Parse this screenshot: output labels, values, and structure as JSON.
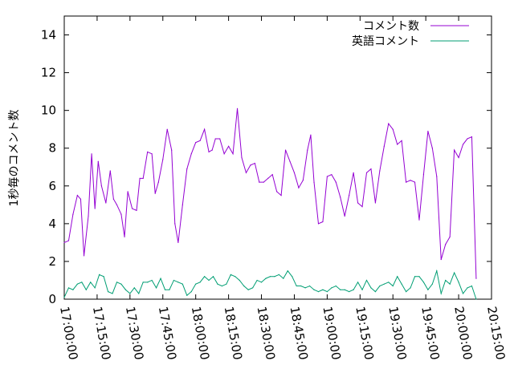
{
  "chart_data": {
    "type": "line",
    "title": "",
    "xlabel": "",
    "ylabel": "1秒毎のコメント数",
    "xlim": [
      "17:00:00",
      "20:15:00"
    ],
    "ylim": [
      0,
      15
    ],
    "grid": false,
    "legend_position": "top-right",
    "x_ticks": [
      "17:00:00",
      "17:15:00",
      "17:30:00",
      "17:45:00",
      "18:00:00",
      "18:15:00",
      "18:30:00",
      "18:45:00",
      "19:00:00",
      "19:15:00",
      "19:30:00",
      "19:45:00",
      "20:00:00",
      "20:15:00"
    ],
    "y_ticks": [
      0,
      2,
      4,
      6,
      8,
      10,
      12,
      14
    ],
    "series": [
      {
        "name": "コメント数",
        "color": "#9400d3",
        "points": [
          [
            "17:00:00",
            3.0
          ],
          [
            "17:02:00",
            3.1
          ],
          [
            "17:04:00",
            4.5
          ],
          [
            "17:06:00",
            5.5
          ],
          [
            "17:07:30",
            5.3
          ],
          [
            "17:09:00",
            2.3
          ],
          [
            "17:11:00",
            4.4
          ],
          [
            "17:12:30",
            7.7
          ],
          [
            "17:14:00",
            4.8
          ],
          [
            "17:15:30",
            7.3
          ],
          [
            "17:17:00",
            6.0
          ],
          [
            "17:19:00",
            5.1
          ],
          [
            "17:21:00",
            6.8
          ],
          [
            "17:22:30",
            5.3
          ],
          [
            "17:24:00",
            5.0
          ],
          [
            "17:26:00",
            4.5
          ],
          [
            "17:27:30",
            3.3
          ],
          [
            "17:29:00",
            5.7
          ],
          [
            "17:31:00",
            4.8
          ],
          [
            "17:33:00",
            4.7
          ],
          [
            "17:34:30",
            6.4
          ],
          [
            "17:36:00",
            6.4
          ],
          [
            "17:38:00",
            7.8
          ],
          [
            "17:40:00",
            7.7
          ],
          [
            "17:41:30",
            5.6
          ],
          [
            "17:43:00",
            6.2
          ],
          [
            "17:45:00",
            7.4
          ],
          [
            "17:47:00",
            9.0
          ],
          [
            "17:49:00",
            7.9
          ],
          [
            "17:50:30",
            4.0
          ],
          [
            "17:52:00",
            3.0
          ],
          [
            "17:54:00",
            5.0
          ],
          [
            "17:56:00",
            6.9
          ],
          [
            "17:58:00",
            7.7
          ],
          [
            "18:00:00",
            8.3
          ],
          [
            "18:02:00",
            8.4
          ],
          [
            "18:04:00",
            9.0
          ],
          [
            "18:06:00",
            7.8
          ],
          [
            "18:07:30",
            7.9
          ],
          [
            "18:09:00",
            8.5
          ],
          [
            "18:11:00",
            8.5
          ],
          [
            "18:13:00",
            7.7
          ],
          [
            "18:15:00",
            8.1
          ],
          [
            "18:17:00",
            7.7
          ],
          [
            "18:19:00",
            10.1
          ],
          [
            "18:21:00",
            7.5
          ],
          [
            "18:23:00",
            6.7
          ],
          [
            "18:25:00",
            7.1
          ],
          [
            "18:27:00",
            7.2
          ],
          [
            "18:29:00",
            6.2
          ],
          [
            "18:31:00",
            6.2
          ],
          [
            "18:33:00",
            6.4
          ],
          [
            "18:35:00",
            6.6
          ],
          [
            "18:37:00",
            5.7
          ],
          [
            "18:39:00",
            5.5
          ],
          [
            "18:41:00",
            7.9
          ],
          [
            "18:43:00",
            7.3
          ],
          [
            "18:45:00",
            6.7
          ],
          [
            "18:47:00",
            5.9
          ],
          [
            "18:49:00",
            6.3
          ],
          [
            "18:51:00",
            7.9
          ],
          [
            "18:52:30",
            8.7
          ],
          [
            "18:54:00",
            6.2
          ],
          [
            "18:56:00",
            4.0
          ],
          [
            "18:58:00",
            4.1
          ],
          [
            "19:00:00",
            6.5
          ],
          [
            "19:02:00",
            6.6
          ],
          [
            "19:04:00",
            6.2
          ],
          [
            "19:06:00",
            5.4
          ],
          [
            "19:08:00",
            4.4
          ],
          [
            "19:10:00",
            5.5
          ],
          [
            "19:12:00",
            6.7
          ],
          [
            "19:14:00",
            5.1
          ],
          [
            "19:16:00",
            4.9
          ],
          [
            "19:18:00",
            6.7
          ],
          [
            "19:20:00",
            6.9
          ],
          [
            "19:22:00",
            5.1
          ],
          [
            "19:24:00",
            6.8
          ],
          [
            "19:26:00",
            8.1
          ],
          [
            "19:28:00",
            9.3
          ],
          [
            "19:30:00",
            9.0
          ],
          [
            "19:32:00",
            8.2
          ],
          [
            "19:34:00",
            8.4
          ],
          [
            "19:36:00",
            6.2
          ],
          [
            "19:38:00",
            6.3
          ],
          [
            "19:40:00",
            6.2
          ],
          [
            "19:42:00",
            4.2
          ],
          [
            "19:44:00",
            6.6
          ],
          [
            "19:46:00",
            8.9
          ],
          [
            "19:48:00",
            8.0
          ],
          [
            "19:50:00",
            6.5
          ],
          [
            "19:52:00",
            2.1
          ],
          [
            "19:54:00",
            2.9
          ],
          [
            "19:56:00",
            3.3
          ],
          [
            "19:58:00",
            7.9
          ],
          [
            "20:00:00",
            7.5
          ],
          [
            "20:02:00",
            8.2
          ],
          [
            "20:04:00",
            8.5
          ],
          [
            "20:06:00",
            8.6
          ],
          [
            "20:08:00",
            1.1
          ]
        ]
      },
      {
        "name": "英語コメント",
        "color": "#009e73",
        "points": [
          [
            "17:00:00",
            0.1
          ],
          [
            "17:02:00",
            0.6
          ],
          [
            "17:04:00",
            0.5
          ],
          [
            "17:06:00",
            0.8
          ],
          [
            "17:08:00",
            0.9
          ],
          [
            "17:10:00",
            0.5
          ],
          [
            "17:12:00",
            0.9
          ],
          [
            "17:14:00",
            0.6
          ],
          [
            "17:16:00",
            1.3
          ],
          [
            "17:18:00",
            1.2
          ],
          [
            "17:20:00",
            0.4
          ],
          [
            "17:22:00",
            0.3
          ],
          [
            "17:24:00",
            0.9
          ],
          [
            "17:26:00",
            0.8
          ],
          [
            "17:28:00",
            0.5
          ],
          [
            "17:30:00",
            0.3
          ],
          [
            "17:32:00",
            0.6
          ],
          [
            "17:34:00",
            0.3
          ],
          [
            "17:36:00",
            0.9
          ],
          [
            "17:38:00",
            0.9
          ],
          [
            "17:40:00",
            1.0
          ],
          [
            "17:42:00",
            0.6
          ],
          [
            "17:44:00",
            1.1
          ],
          [
            "17:46:00",
            0.5
          ],
          [
            "17:48:00",
            0.5
          ],
          [
            "17:50:00",
            1.0
          ],
          [
            "17:52:00",
            0.9
          ],
          [
            "17:54:00",
            0.8
          ],
          [
            "17:56:00",
            0.2
          ],
          [
            "17:58:00",
            0.4
          ],
          [
            "18:00:00",
            0.8
          ],
          [
            "18:02:00",
            0.9
          ],
          [
            "18:04:00",
            1.2
          ],
          [
            "18:06:00",
            1.0
          ],
          [
            "18:08:00",
            1.2
          ],
          [
            "18:10:00",
            0.8
          ],
          [
            "18:12:00",
            0.7
          ],
          [
            "18:14:00",
            0.8
          ],
          [
            "18:16:00",
            1.3
          ],
          [
            "18:18:00",
            1.2
          ],
          [
            "18:20:00",
            1.0
          ],
          [
            "18:22:00",
            0.7
          ],
          [
            "18:24:00",
            0.5
          ],
          [
            "18:26:00",
            0.6
          ],
          [
            "18:28:00",
            1.0
          ],
          [
            "18:30:00",
            0.9
          ],
          [
            "18:32:00",
            1.1
          ],
          [
            "18:34:00",
            1.2
          ],
          [
            "18:36:00",
            1.2
          ],
          [
            "18:38:00",
            1.3
          ],
          [
            "18:40:00",
            1.1
          ],
          [
            "18:42:00",
            1.5
          ],
          [
            "18:44:00",
            1.2
          ],
          [
            "18:46:00",
            0.7
          ],
          [
            "18:48:00",
            0.7
          ],
          [
            "18:50:00",
            0.6
          ],
          [
            "18:52:00",
            0.7
          ],
          [
            "18:54:00",
            0.5
          ],
          [
            "18:56:00",
            0.4
          ],
          [
            "18:58:00",
            0.5
          ],
          [
            "19:00:00",
            0.4
          ],
          [
            "19:02:00",
            0.6
          ],
          [
            "19:04:00",
            0.7
          ],
          [
            "19:06:00",
            0.5
          ],
          [
            "19:08:00",
            0.5
          ],
          [
            "19:10:00",
            0.4
          ],
          [
            "19:12:00",
            0.5
          ],
          [
            "19:14:00",
            0.9
          ],
          [
            "19:16:00",
            0.5
          ],
          [
            "19:18:00",
            1.0
          ],
          [
            "19:20:00",
            0.6
          ],
          [
            "19:22:00",
            0.4
          ],
          [
            "19:24:00",
            0.7
          ],
          [
            "19:26:00",
            0.8
          ],
          [
            "19:28:00",
            0.9
          ],
          [
            "19:30:00",
            0.7
          ],
          [
            "19:32:00",
            1.2
          ],
          [
            "19:34:00",
            0.8
          ],
          [
            "19:36:00",
            0.4
          ],
          [
            "19:38:00",
            0.6
          ],
          [
            "19:40:00",
            1.2
          ],
          [
            "19:42:00",
            1.2
          ],
          [
            "19:44:00",
            0.9
          ],
          [
            "19:46:00",
            0.5
          ],
          [
            "19:48:00",
            0.8
          ],
          [
            "19:50:00",
            1.5
          ],
          [
            "19:52:00",
            0.3
          ],
          [
            "19:54:00",
            1.0
          ],
          [
            "19:56:00",
            0.8
          ],
          [
            "19:58:00",
            1.4
          ],
          [
            "20:00:00",
            0.9
          ],
          [
            "20:02:00",
            0.3
          ],
          [
            "20:04:00",
            0.6
          ],
          [
            "20:06:00",
            0.7
          ],
          [
            "20:08:00",
            0.0
          ]
        ]
      }
    ]
  }
}
